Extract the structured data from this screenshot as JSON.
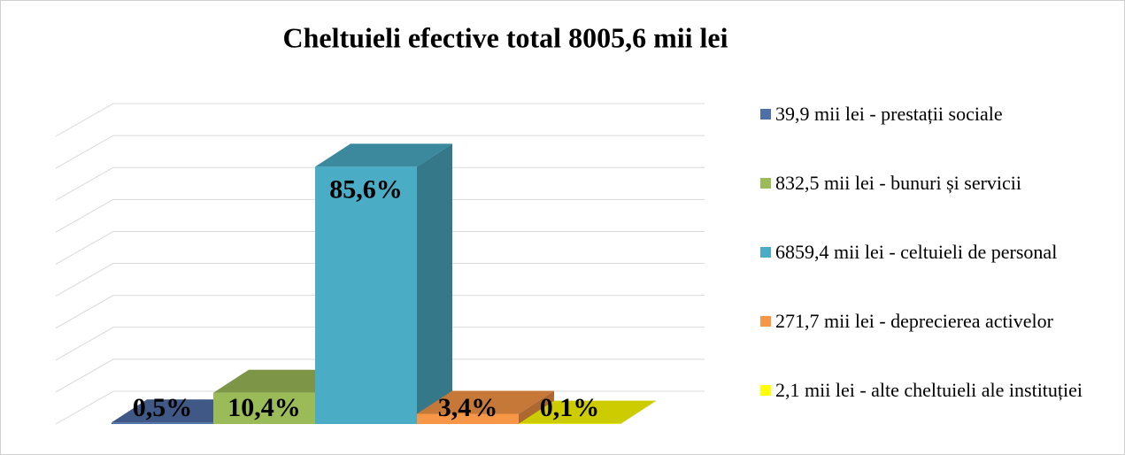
{
  "chart_data": {
    "type": "bar3d",
    "title": "Cheltuieli efective total 8005,6 mii lei",
    "ylim": [
      0,
      90
    ],
    "yticks": [
      0,
      10,
      20,
      30,
      40,
      50,
      60,
      70,
      80,
      90
    ],
    "grid": true,
    "legend": "right",
    "series": [
      {
        "name": "39,9 mii lei - prestații sociale",
        "color": "#4f6fa8",
        "values": [
          0.5
        ],
        "value_labels": [
          "0,5%"
        ]
      },
      {
        "name": "832,5 mii lei - bunuri și servicii",
        "color": "#9bbb59",
        "values": [
          10.4
        ],
        "value_labels": [
          "10,4%"
        ]
      },
      {
        "name": "6859,4 mii lei - celtuieli de personal",
        "color": "#4bacc6",
        "values": [
          85.6
        ],
        "value_labels": [
          "85,6%"
        ]
      },
      {
        "name": "271,7 mii lei - deprecierea activelor",
        "color": "#f79646",
        "values": [
          3.4
        ],
        "value_labels": [
          "3,4%"
        ]
      },
      {
        "name": "2,1 mii lei - alte cheltuieli ale instituției",
        "color": "#ffff00",
        "values": [
          0.1
        ],
        "value_labels": [
          "0,1%"
        ]
      }
    ]
  }
}
